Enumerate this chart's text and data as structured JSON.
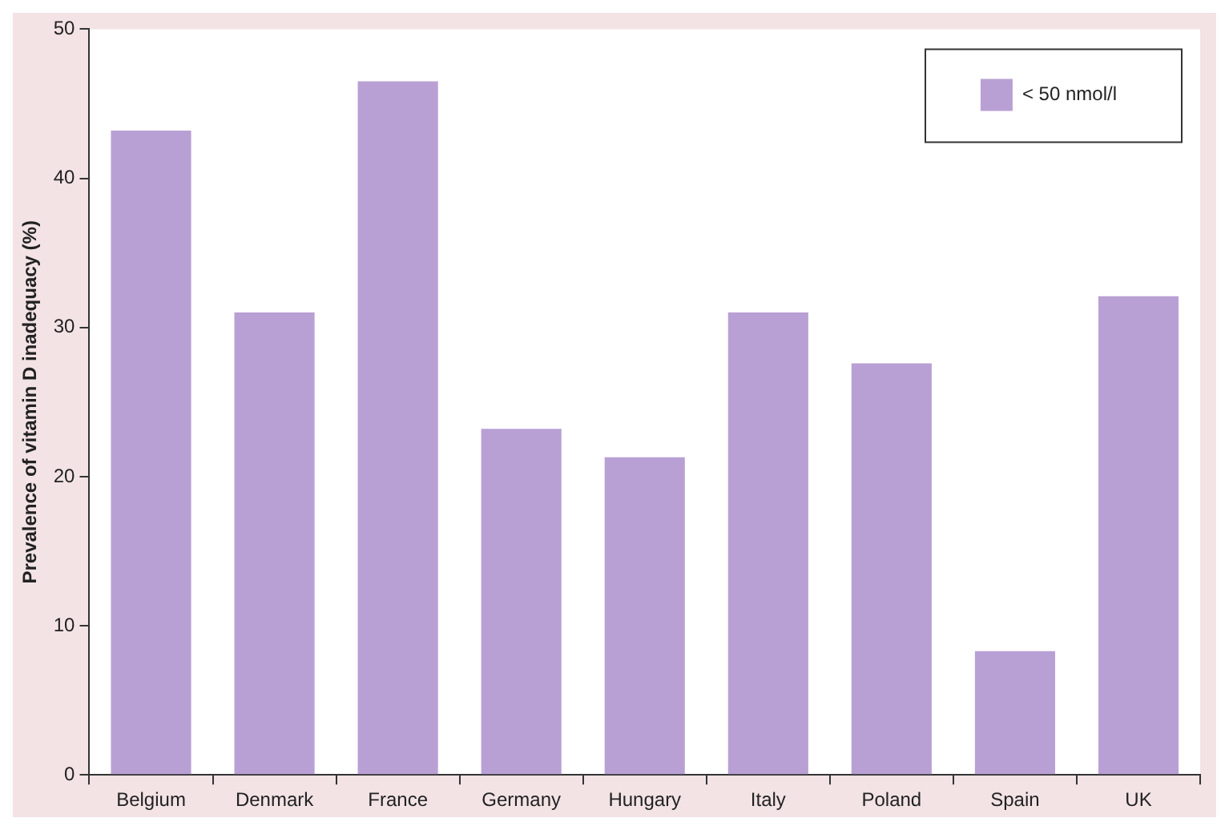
{
  "chart_data": {
    "type": "bar",
    "ylabel": "Prevalence of vitamin D inadequacy (%)",
    "categories": [
      "Belgium",
      "Denmark",
      "France",
      "Germany",
      "Hungary",
      "Italy",
      "Poland",
      "Spain",
      "UK"
    ],
    "series": [
      {
        "name": "< 50 nmol/l",
        "color": "#b9a0d4",
        "values": [
          43.2,
          31.0,
          46.5,
          23.2,
          21.3,
          31.0,
          27.6,
          8.3,
          32.1
        ]
      }
    ],
    "ylim": [
      0,
      50
    ],
    "yticks": [
      0,
      10,
      20,
      30,
      40,
      50
    ],
    "grid": false,
    "legend": "top right"
  }
}
